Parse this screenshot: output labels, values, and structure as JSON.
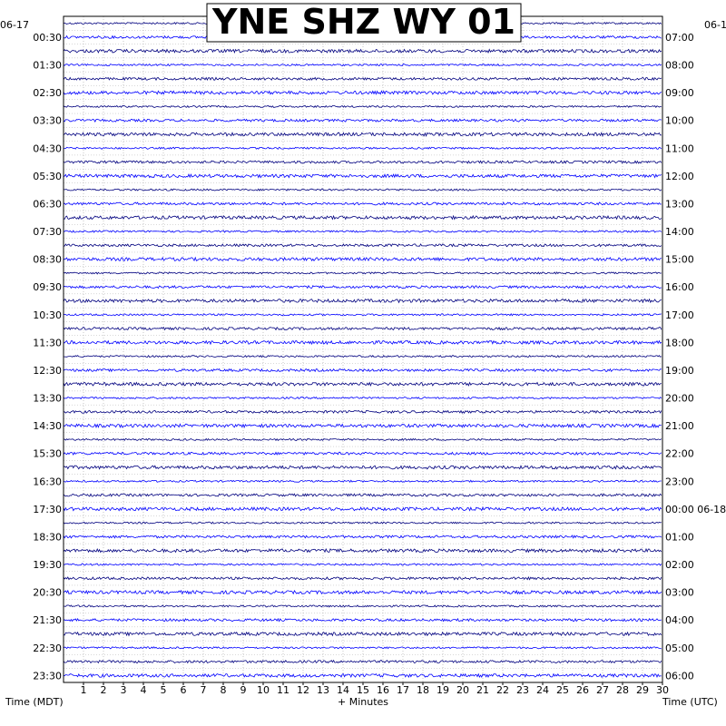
{
  "chart_data": {
    "type": "line",
    "title": "YNE SHZ WY 01",
    "xlabel": "+ Minutes",
    "left_axis_label": "Time (MDT)",
    "right_axis_label": "Time (UTC)",
    "start_date_left": "06-17",
    "start_date_right": "06-1",
    "x_ticks": [
      "1",
      "2",
      "3",
      "4",
      "5",
      "6",
      "7",
      "8",
      "9",
      "10",
      "11",
      "12",
      "13",
      "14",
      "15",
      "16",
      "17",
      "18",
      "19",
      "20",
      "21",
      "22",
      "23",
      "24",
      "25",
      "26",
      "27",
      "28",
      "29",
      "30"
    ],
    "xlim": [
      0,
      30
    ],
    "rows_per_hour": 2,
    "left_hour_labels": [
      "00:30",
      "01:30",
      "02:30",
      "03:30",
      "04:30",
      "05:30",
      "06:30",
      "07:30",
      "08:30",
      "09:30",
      "10:30",
      "11:30",
      "12:30",
      "13:30",
      "14:30",
      "15:30",
      "16:30",
      "17:30",
      "18:30",
      "19:30",
      "20:30",
      "21:30",
      "22:30",
      "23:30"
    ],
    "right_hour_labels": [
      "07:00",
      "08:00",
      "09:00",
      "10:00",
      "11:00",
      "12:00",
      "13:00",
      "14:00",
      "15:00",
      "16:00",
      "17:00",
      "18:00",
      "19:00",
      "20:00",
      "21:00",
      "22:00",
      "23:00",
      "00:00 06-18",
      "01:00",
      "02:00",
      "03:00",
      "04:00",
      "05:00",
      "06:00"
    ],
    "trace_colors": [
      "#00007f",
      "#0000ff"
    ],
    "clip_color": "#ff0000",
    "grid": true
  }
}
